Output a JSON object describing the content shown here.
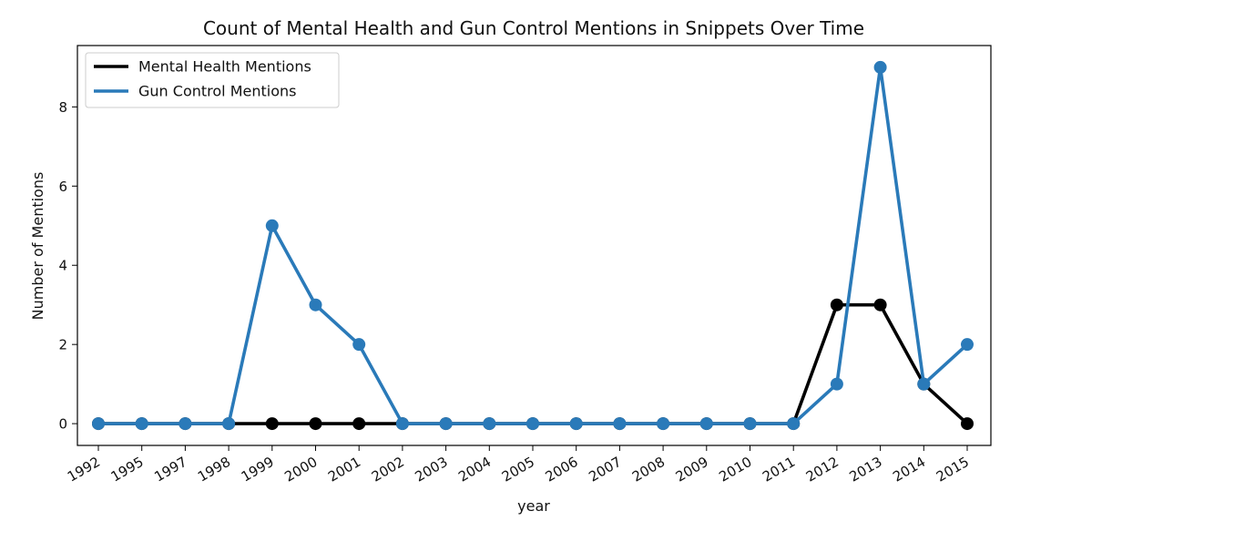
{
  "chart_data": {
    "type": "line",
    "title": "Count of Mental Health and Gun Control Mentions in Snippets Over Time",
    "xlabel": "year",
    "ylabel": "Number of Mentions",
    "categories": [
      "1992",
      "1995",
      "1997",
      "1998",
      "1999",
      "2000",
      "2001",
      "2002",
      "2003",
      "2004",
      "2005",
      "2006",
      "2007",
      "2008",
      "2009",
      "2010",
      "2011",
      "2012",
      "2013",
      "2014",
      "2015"
    ],
    "series": [
      {
        "name": "Mental Health Mentions",
        "color": "#000000",
        "values": [
          0,
          0,
          0,
          0,
          0,
          0,
          0,
          0,
          0,
          0,
          0,
          0,
          0,
          0,
          0,
          0,
          0,
          3,
          3,
          1,
          0
        ]
      },
      {
        "name": "Gun Control Mentions",
        "color": "#2a7ab9",
        "values": [
          0,
          0,
          0,
          0,
          5,
          3,
          2,
          0,
          0,
          0,
          0,
          0,
          0,
          0,
          0,
          0,
          0,
          1,
          9,
          1,
          2
        ]
      }
    ],
    "ylim": [
      -0.55,
      9.55
    ],
    "yticks": [
      "0",
      "2",
      "4",
      "6",
      "8"
    ],
    "legend_position": "top-left",
    "grid": false
  }
}
